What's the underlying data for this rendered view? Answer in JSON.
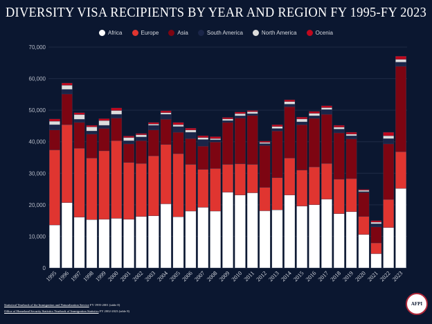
{
  "chart_data": {
    "type": "bar",
    "stacked": true,
    "title": "DIVERSITY VISA RECIPIENTS BY YEAR AND REGION FY 1995-FY 2023",
    "xlabel": "",
    "ylabel": "",
    "ylim": [
      0,
      70000
    ],
    "yticks": [
      "0",
      "10,000",
      "20,000",
      "30,000",
      "40,000",
      "50,000",
      "60,000",
      "70,000"
    ],
    "grid": true,
    "legend_position": "top",
    "categories": [
      "1995",
      "1996",
      "1997",
      "1998",
      "1999",
      "2000",
      "2001",
      "2002",
      "2003",
      "2004",
      "2005",
      "2006",
      "2007",
      "2008",
      "2009",
      "2010",
      "2011",
      "2012",
      "2013",
      "2014",
      "2015",
      "2016",
      "2017",
      "2018",
      "2019",
      "2020",
      "2021",
      "2022",
      "2023"
    ],
    "series": [
      {
        "name": "Africa",
        "color": "#ffffff",
        "values": [
          13600,
          20700,
          16100,
          15300,
          15400,
          15700,
          15400,
          16300,
          16500,
          20300,
          16200,
          18000,
          19200,
          18000,
          24000,
          23100,
          23800,
          18100,
          18400,
          23100,
          19600,
          20000,
          21800,
          17200,
          17800,
          10600,
          4500,
          12800,
          25200
        ]
      },
      {
        "name": "Europe",
        "color": "#e03530",
        "values": [
          23800,
          24700,
          21800,
          19500,
          21700,
          24600,
          18000,
          16800,
          19000,
          18800,
          20000,
          14800,
          12000,
          13500,
          8800,
          9900,
          9000,
          7400,
          10200,
          11700,
          11400,
          12000,
          11300,
          10900,
          10500,
          5700,
          3400,
          8900,
          11600
        ]
      },
      {
        "name": "Asia",
        "color": "#7d0512",
        "values": [
          6300,
          9700,
          8200,
          7600,
          7100,
          7200,
          5900,
          7200,
          8200,
          8000,
          6800,
          8200,
          7400,
          8400,
          13300,
          14500,
          15500,
          13300,
          14800,
          16300,
          14400,
          15400,
          15600,
          14700,
          12600,
          7600,
          5100,
          17600,
          27100
        ]
      },
      {
        "name": "South America",
        "color": "#1a2548",
        "values": [
          1700,
          1500,
          1000,
          1000,
          1000,
          1200,
          1000,
          1200,
          1500,
          1600,
          1800,
          2000,
          2100,
          700,
          600,
          700,
          600,
          600,
          800,
          800,
          900,
          800,
          1500,
          1200,
          1000,
          300,
          1000,
          1700,
          1300
        ]
      },
      {
        "name": "North America",
        "color": "#dcdcdc",
        "values": [
          1100,
          1300,
          1500,
          1300,
          1500,
          1200,
          1000,
          700,
          400,
          500,
          600,
          700,
          600,
          400,
          500,
          700,
          600,
          400,
          600,
          800,
          900,
          800,
          600,
          600,
          500,
          400,
          500,
          900,
          900
        ]
      },
      {
        "name": "Ocenia",
        "color": "#c0081d",
        "values": [
          700,
          700,
          600,
          500,
          600,
          800,
          500,
          400,
          500,
          600,
          700,
          600,
          600,
          600,
          500,
          500,
          400,
          400,
          600,
          600,
          600,
          600,
          600,
          600,
          600,
          300,
          500,
          1100,
          1000
        ]
      }
    ]
  },
  "footer": {
    "source1_link": "Statistical Yearbook of the Immigration and Naturalization Service",
    "source1_rest": " FY 1995-2001 (table 8)",
    "source2_link": "Office of Homeland Security Statistics Yearbook of Immigration Statistics",
    "source2_rest": " FY 2002-2023 (table 8)",
    "logo_text": "AFPI"
  },
  "colors": {
    "background": "#0b1730",
    "grid": "#1f2b45"
  }
}
